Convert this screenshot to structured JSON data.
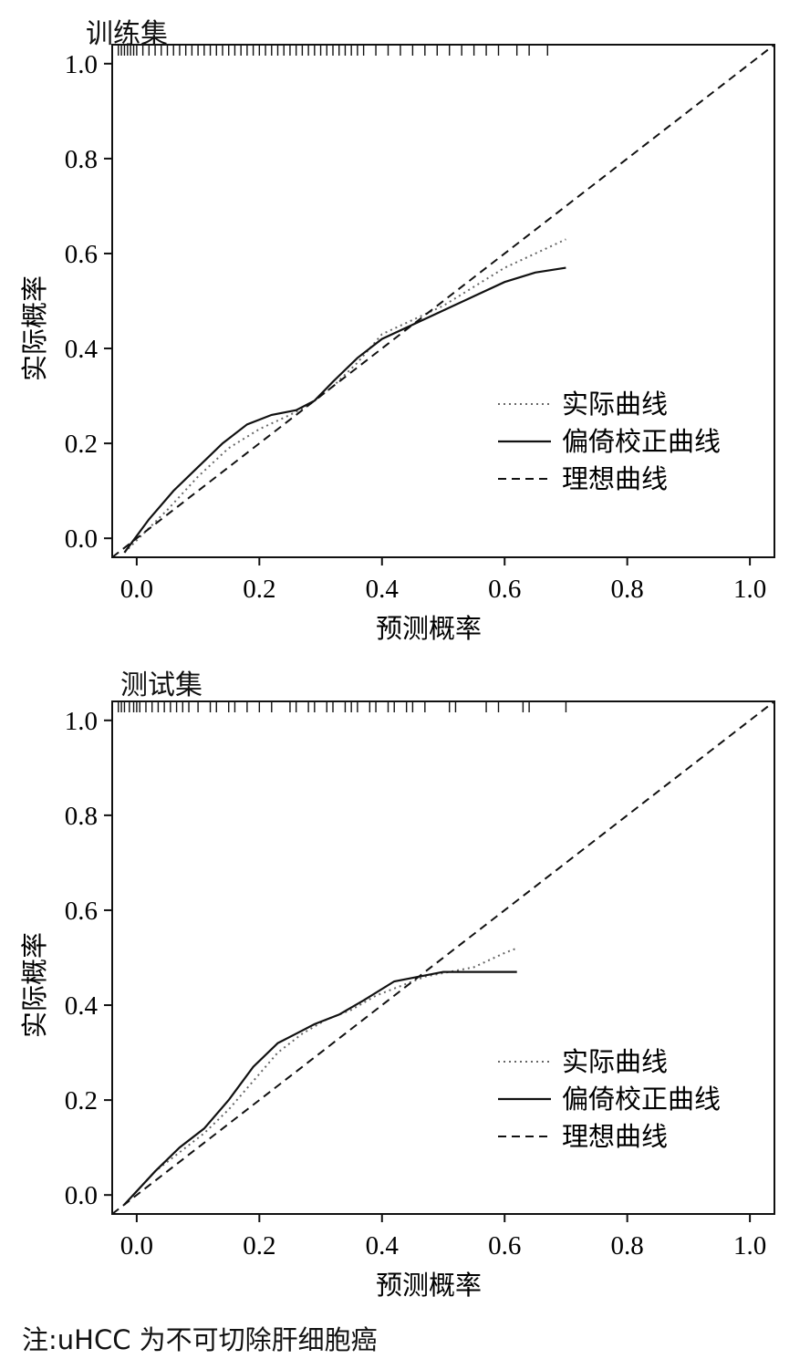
{
  "legend_labels": {
    "apparent": "实际曲线",
    "bias": "偏倚校正曲线",
    "ideal": "理想曲线"
  },
  "note": "注:uHCC 为不可切除肝细胞癌",
  "chart_data": [
    {
      "type": "line",
      "title": "训练集",
      "xlabel": "预测概率",
      "ylabel": "实际概率",
      "xlim": [
        -0.04,
        1.04
      ],
      "ylim": [
        -0.04,
        1.04
      ],
      "xticks": [
        "0.0",
        "0.2",
        "0.4",
        "0.6",
        "0.8",
        "1.0"
      ],
      "yticks": [
        "0.0",
        "0.2",
        "0.4",
        "0.6",
        "0.8",
        "1.0"
      ],
      "legend_position": "bottom-right",
      "series": [
        {
          "name": "实际曲线",
          "style": "dotted",
          "x": [
            -0.02,
            0.05,
            0.1,
            0.15,
            0.2,
            0.25,
            0.28,
            0.32,
            0.36,
            0.4,
            0.45,
            0.5,
            0.55,
            0.6,
            0.65,
            0.7
          ],
          "y": [
            -0.03,
            0.06,
            0.13,
            0.19,
            0.23,
            0.26,
            0.28,
            0.32,
            0.37,
            0.43,
            0.46,
            0.49,
            0.53,
            0.57,
            0.6,
            0.63
          ]
        },
        {
          "name": "偏倚校正曲线",
          "style": "solid",
          "x": [
            -0.02,
            0.02,
            0.06,
            0.1,
            0.14,
            0.18,
            0.22,
            0.26,
            0.29,
            0.32,
            0.36,
            0.4,
            0.45,
            0.5,
            0.55,
            0.6,
            0.65,
            0.7
          ],
          "y": [
            -0.03,
            0.04,
            0.1,
            0.15,
            0.2,
            0.24,
            0.26,
            0.27,
            0.29,
            0.33,
            0.38,
            0.42,
            0.45,
            0.48,
            0.51,
            0.54,
            0.56,
            0.57
          ]
        },
        {
          "name": "理想曲线",
          "style": "dashed",
          "x": [
            -0.04,
            1.04
          ],
          "y": [
            -0.04,
            1.04
          ]
        }
      ],
      "rug_x": [
        -0.03,
        -0.025,
        -0.02,
        -0.015,
        -0.01,
        -0.005,
        0.0,
        0.01,
        0.02,
        0.03,
        0.04,
        0.05,
        0.06,
        0.07,
        0.08,
        0.09,
        0.1,
        0.11,
        0.12,
        0.13,
        0.14,
        0.15,
        0.16,
        0.17,
        0.18,
        0.19,
        0.2,
        0.21,
        0.22,
        0.23,
        0.24,
        0.25,
        0.26,
        0.27,
        0.28,
        0.29,
        0.3,
        0.31,
        0.32,
        0.33,
        0.34,
        0.35,
        0.36,
        0.37,
        0.39,
        0.41,
        0.43,
        0.45,
        0.47,
        0.49,
        0.51,
        0.53,
        0.55,
        0.57,
        0.59,
        0.62,
        0.64,
        0.67
      ]
    },
    {
      "type": "line",
      "title": "测试集",
      "xlabel": "预测概率",
      "ylabel": "实际概率",
      "xlim": [
        -0.04,
        1.04
      ],
      "ylim": [
        -0.04,
        1.04
      ],
      "xticks": [
        "0.0",
        "0.2",
        "0.4",
        "0.6",
        "0.8",
        "1.0"
      ],
      "yticks": [
        "0.0",
        "0.2",
        "0.4",
        "0.6",
        "0.8",
        "1.0"
      ],
      "legend_position": "bottom-right",
      "series": [
        {
          "name": "实际曲线",
          "style": "dotted",
          "x": [
            -0.02,
            0.03,
            0.07,
            0.11,
            0.15,
            0.19,
            0.23,
            0.27,
            0.31,
            0.35,
            0.39,
            0.43,
            0.47,
            0.51,
            0.55,
            0.6,
            0.62
          ],
          "y": [
            -0.02,
            0.05,
            0.09,
            0.13,
            0.18,
            0.24,
            0.3,
            0.34,
            0.37,
            0.39,
            0.42,
            0.44,
            0.46,
            0.47,
            0.48,
            0.51,
            0.52
          ]
        },
        {
          "name": "偏倚校正曲线",
          "style": "solid",
          "x": [
            -0.02,
            0.03,
            0.07,
            0.11,
            0.15,
            0.19,
            0.23,
            0.26,
            0.29,
            0.33,
            0.37,
            0.42,
            0.46,
            0.5,
            0.54,
            0.58,
            0.62
          ],
          "y": [
            -0.02,
            0.05,
            0.1,
            0.14,
            0.2,
            0.27,
            0.32,
            0.34,
            0.36,
            0.38,
            0.41,
            0.45,
            0.46,
            0.47,
            0.47,
            0.47,
            0.47
          ]
        },
        {
          "name": "理想曲线",
          "style": "dashed",
          "x": [
            -0.04,
            1.04
          ],
          "y": [
            -0.04,
            1.04
          ]
        }
      ],
      "rug_x": [
        -0.03,
        -0.025,
        -0.02,
        -0.012,
        -0.005,
        0.0,
        0.005,
        0.015,
        0.025,
        0.035,
        0.045,
        0.055,
        0.065,
        0.075,
        0.085,
        0.1,
        0.12,
        0.13,
        0.15,
        0.16,
        0.18,
        0.2,
        0.22,
        0.25,
        0.26,
        0.28,
        0.29,
        0.31,
        0.32,
        0.34,
        0.35,
        0.36,
        0.38,
        0.39,
        0.41,
        0.42,
        0.44,
        0.45,
        0.47,
        0.51,
        0.52,
        0.57,
        0.59,
        0.63,
        0.64,
        0.7
      ]
    }
  ]
}
